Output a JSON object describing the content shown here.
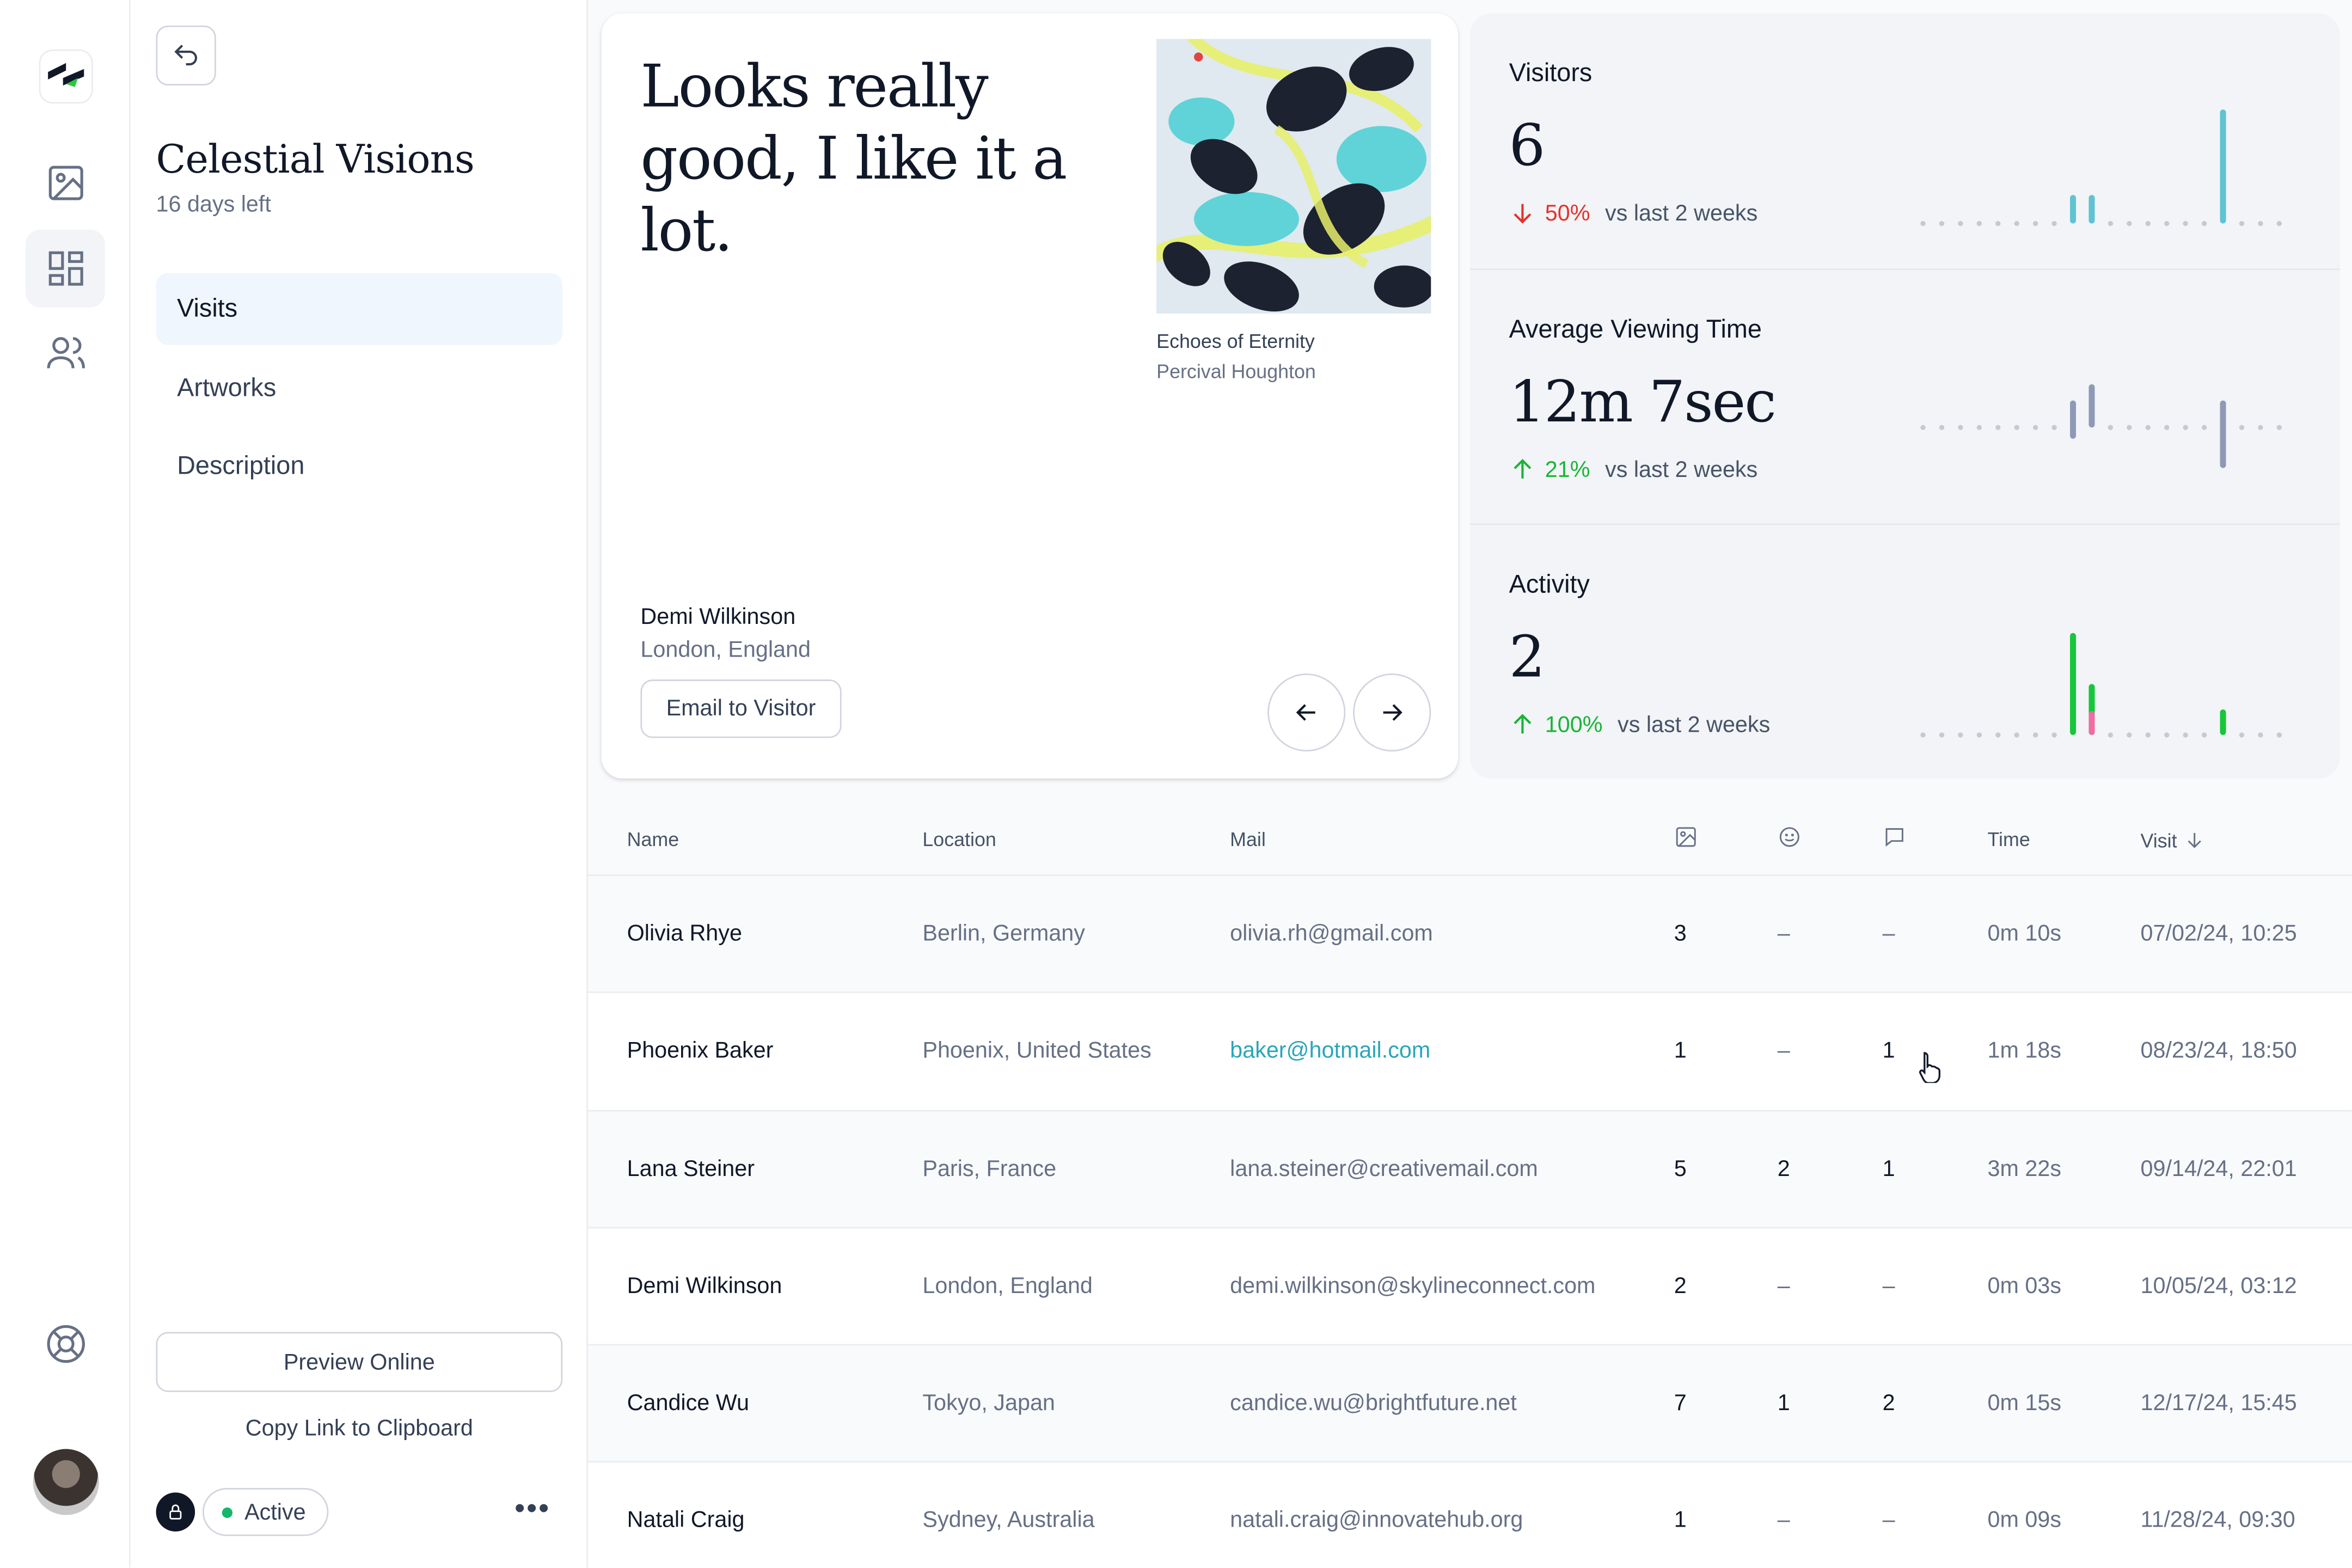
{
  "exhibition": {
    "title": "Celestial Visions",
    "subtitle": "16 days left"
  },
  "nav": [
    {
      "label": "Visits",
      "active": true
    },
    {
      "label": "Artworks",
      "active": false
    },
    {
      "label": "Description",
      "active": false
    }
  ],
  "sidebar_footer": {
    "preview_label": "Preview Online",
    "copy_label": "Copy Link to Clipboard",
    "status_label": "Active",
    "status_color": "#12b76a",
    "more_label": "•••"
  },
  "feedback": {
    "quote": "Looks really good, I like it a lot.",
    "artwork_title": "Echoes of Eternity",
    "artwork_artist": "Percival Houghton",
    "visitor_name": "Demi Wilkinson",
    "visitor_location": "London, England",
    "email_label": "Email to Visitor"
  },
  "stats": [
    {
      "label": "Visitors",
      "value": "6",
      "direction": "down",
      "change": "50%",
      "compare": "vs last 2 weeks",
      "color": "#5fc3d3",
      "spark": [
        0,
        0,
        0,
        0,
        0,
        0,
        0,
        0,
        1,
        1,
        0,
        0,
        0,
        0,
        0,
        0,
        4,
        0,
        0,
        0
      ]
    },
    {
      "label": "Average Viewing Time",
      "value": "12m 7sec",
      "direction": "up",
      "change": "21%",
      "compare": "vs last 2 weeks",
      "color": "#8e9ab5",
      "spark_up": [
        0,
        0,
        0,
        0,
        0,
        0,
        0,
        0,
        1,
        1.6,
        0,
        0,
        0,
        0,
        0,
        0,
        1,
        0,
        0,
        0
      ],
      "spark_down": [
        0,
        0,
        0,
        0,
        0,
        0,
        0,
        0,
        0.5,
        0,
        0,
        0,
        0,
        0,
        0,
        0,
        1.8,
        0,
        0,
        0
      ]
    },
    {
      "label": "Activity",
      "value": "2",
      "direction": "up",
      "change": "100%",
      "compare": "vs last 2 weeks",
      "color": "#17c63a",
      "color2": "#ec6ea2",
      "spark": [
        0,
        0,
        0,
        0,
        0,
        0,
        0,
        0,
        4,
        2,
        0,
        0,
        0,
        0,
        0,
        0,
        1,
        0,
        0,
        0
      ],
      "spark2": [
        0,
        0,
        0,
        0,
        0,
        0,
        0,
        0,
        0,
        1,
        0,
        0,
        0,
        0,
        0,
        0,
        0,
        0,
        0,
        0
      ]
    }
  ],
  "colors": {
    "down": "#e5322d",
    "up": "#17b534"
  },
  "table": {
    "headers": {
      "name": "Name",
      "location": "Location",
      "mail": "Mail",
      "time": "Time",
      "visit": "Visit"
    },
    "rows": [
      {
        "name": "Olivia Rhye",
        "location": "Berlin, Germany",
        "mail": "olivia.rh@gmail.com",
        "artworks": "3",
        "reactions": "–",
        "comments": "–",
        "time": "0m 10s",
        "visit": "07/02/24, 10:25",
        "hover": false
      },
      {
        "name": "Phoenix Baker",
        "location": "Phoenix, United States",
        "mail": "baker@hotmail.com",
        "artworks": "1",
        "reactions": "–",
        "comments": "1",
        "time": "1m 18s",
        "visit": "08/23/24, 18:50",
        "hover": true
      },
      {
        "name": "Lana Steiner",
        "location": "Paris, France",
        "mail": "lana.steiner@creativemail.com",
        "artworks": "5",
        "reactions": "2",
        "comments": "1",
        "time": "3m 22s",
        "visit": "09/14/24, 22:01",
        "hover": false
      },
      {
        "name": "Demi Wilkinson",
        "location": "London, England",
        "mail": "demi.wilkinson@skylineconnect.com",
        "artworks": "2",
        "reactions": "–",
        "comments": "–",
        "time": "0m 03s",
        "visit": "10/05/24, 03:12",
        "hover": false
      },
      {
        "name": "Candice Wu",
        "location": "Tokyo, Japan",
        "mail": "candice.wu@brightfuture.net",
        "artworks": "7",
        "reactions": "1",
        "comments": "2",
        "time": "0m 15s",
        "visit": "12/17/24, 15:45",
        "hover": false
      },
      {
        "name": "Natali Craig",
        "location": "Sydney, Australia",
        "mail": "natali.craig@innovatehub.org",
        "artworks": "1",
        "reactions": "–",
        "comments": "–",
        "time": "0m 09s",
        "visit": "11/28/24, 09:30",
        "hover": false
      }
    ]
  }
}
